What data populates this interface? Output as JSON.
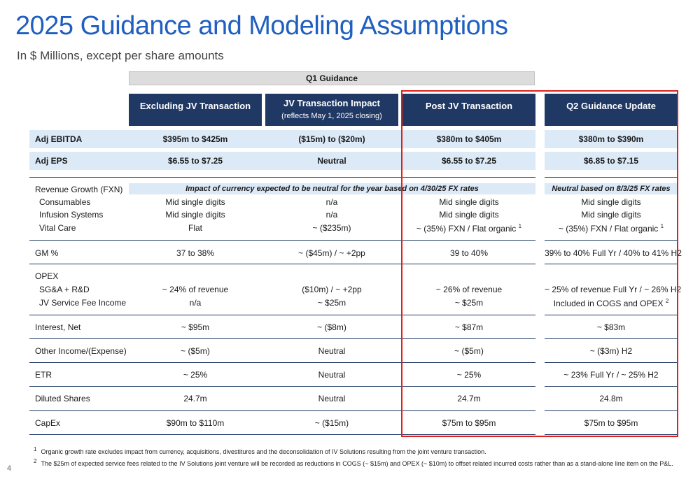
{
  "title": "2025 Guidance and Modeling Assumptions",
  "subtitle": "In $ Millions, except per share amounts",
  "q1_label": "Q1 Guidance",
  "columns": [
    {
      "label": "Excluding JV Transaction",
      "sub": ""
    },
    {
      "label": "JV Transaction Impact",
      "sub": "(reflects May 1, 2025 closing)"
    },
    {
      "label": "Post JV Transaction",
      "sub": ""
    },
    {
      "label": "Q2 Guidance Update",
      "sub": ""
    }
  ],
  "rows": {
    "adj_ebitda": {
      "label": "Adj EBITDA",
      "values": [
        "$395m to $425m",
        "($15m) to ($20m)",
        "$380m to $405m",
        "$380m to $390m"
      ]
    },
    "adj_eps": {
      "label": "Adj EPS",
      "values": [
        "$6.55 to $7.25",
        "Neutral",
        "$6.55 to $7.25",
        "$6.85 to $7.15"
      ]
    },
    "revenue_growth": {
      "label": "Revenue Growth (FXN)",
      "note_q1": "Impact of currency expected to be neutral for the year based on 4/30/25 FX rates",
      "note_q2": "Neutral based on 8/3/25 FX rates"
    },
    "consumables": {
      "label": "Consumables",
      "values": [
        "Mid single digits",
        "n/a",
        "Mid single digits",
        "Mid single digits"
      ]
    },
    "infusion": {
      "label": "Infusion Systems",
      "values": [
        "Mid single digits",
        "n/a",
        "Mid single digits",
        "Mid single digits"
      ]
    },
    "vital_care": {
      "label": "Vital Care",
      "values": [
        "Flat",
        "~ ($235m)",
        "~ (35%) FXN  /  Flat organic",
        "~ (35%) FXN  /  Flat organic"
      ],
      "sup": "1"
    },
    "gm": {
      "label": "GM %",
      "values": [
        "37 to 38%",
        "~ ($45m)  /  ~ +2pp",
        "39 to 40%",
        "39% to 40% Full Yr  /  40% to 41% H2"
      ]
    },
    "opex": {
      "label": "OPEX"
    },
    "sga": {
      "label": "SG&A + R&D",
      "values": [
        "~ 24% of revenue",
        "($10m)  /  ~ +2pp",
        "~ 26% of revenue",
        "~ 25% of revenue Full Yr  /  ~ 26% H2"
      ]
    },
    "jv_fee": {
      "label": "JV Service Fee Income",
      "values": [
        "n/a",
        "~ $25m",
        "~ $25m",
        "Included in COGS and OPEX"
      ],
      "sup": "2"
    },
    "interest": {
      "label": "Interest, Net",
      "values": [
        "~ $95m",
        "~ ($8m)",
        "~ $87m",
        "~ $83m"
      ]
    },
    "other": {
      "label": "Other Income/(Expense)",
      "values": [
        "~ ($5m)",
        "Neutral",
        "~ ($5m)",
        "~ ($3m) H2"
      ]
    },
    "etr": {
      "label": "ETR",
      "values": [
        "~ 25%",
        "Neutral",
        "~ 25%",
        "~ 23% Full Yr  /  ~ 25% H2"
      ]
    },
    "shares": {
      "label": "Diluted Shares",
      "values": [
        "24.7m",
        "Neutral",
        "24.7m",
        "24.8m"
      ]
    },
    "capex": {
      "label": "CapEx",
      "values": [
        "$90m to $110m",
        "~ ($15m)",
        "$75m to $95m",
        "$75m to $95m"
      ]
    }
  },
  "footnotes": [
    {
      "num": "1",
      "text": "Organic growth rate excludes impact from currency, acquisitions, divestitures and the deconsolidation of IV Solutions resulting from the joint venture transaction."
    },
    {
      "num": "2",
      "text": "The $25m of expected service fees related to the IV Solutions joint venture will be recorded as reductions in COGS (~ $15m) and OPEX (~ $10m) to offset related incurred costs rather than as a stand-alone line item on the P&L."
    }
  ],
  "page_number": "4",
  "colors": {
    "title": "#1f5fbf",
    "header_bg": "#1f3864",
    "band_bg": "#dce9f7",
    "highlight_border": "#e0201d"
  }
}
